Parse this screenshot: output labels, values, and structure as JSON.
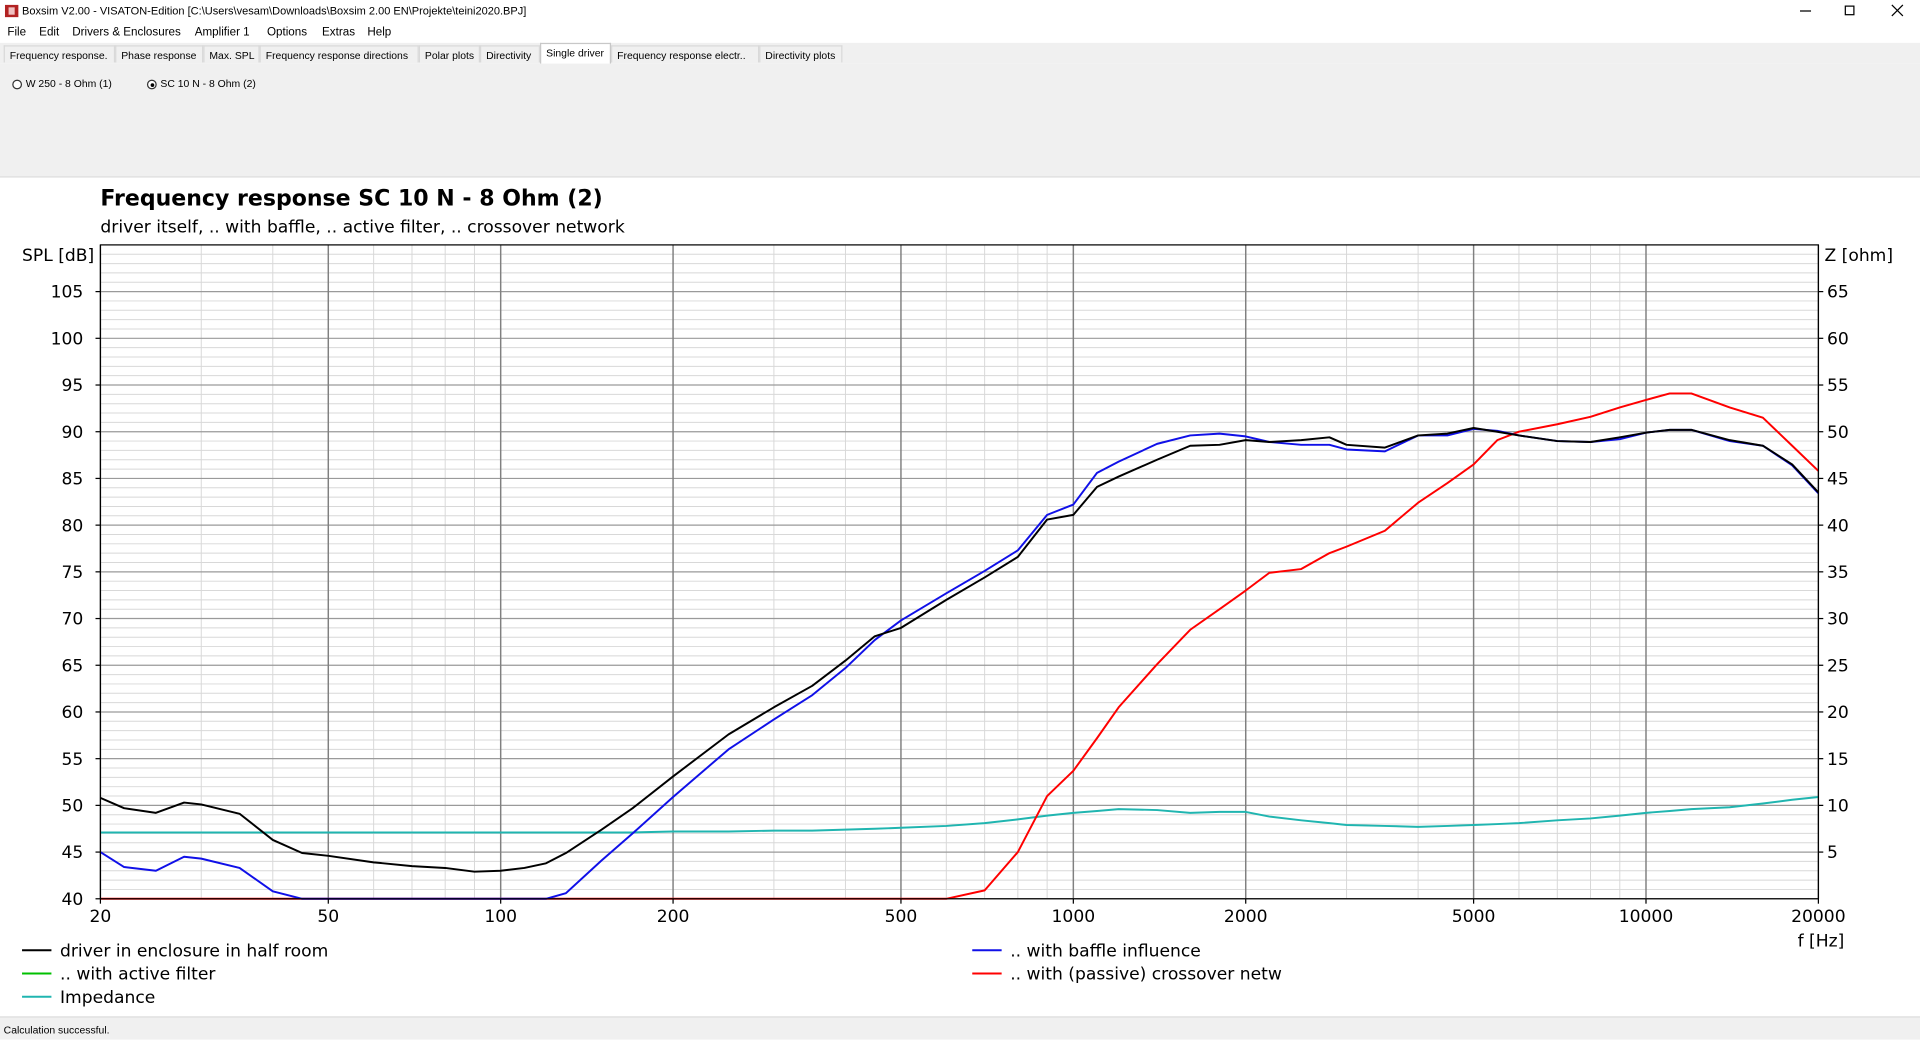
{
  "window": {
    "title": "Boxsim V2.00 - VISATON-Edition [C:\\Users\\vesam\\Downloads\\Boxsim 2.00 EN\\Projekte\\teini2020.BPJ]"
  },
  "menu": [
    "File",
    "Edit",
    "Drivers & Enclosures",
    "Amplifier 1",
    "Options",
    "Extras",
    "Help"
  ],
  "tabs": [
    "Frequency response.",
    "Phase response",
    "Max. SPL",
    "Frequency response directions",
    "Polar plots",
    "Directivity",
    "Single driver",
    "Frequency response electr..",
    "Directivity plots"
  ],
  "active_tab": 6,
  "drivers": [
    "W 250 - 8 Ohm (1)",
    "SC 10 N - 8 Ohm (2)"
  ],
  "selected_driver": 1,
  "status": "Calculation successful.",
  "chart_data": {
    "type": "line",
    "title": "Frequency response SC 10 N - 8 Ohm (2)",
    "subtitle": "driver itself, .. with baffle, .. active filter, .. crossover network",
    "ylabel": "SPL [dB]",
    "y2label": "Z [ohm]",
    "xlabel": "f [Hz]",
    "xscale": "log",
    "grid": true,
    "xlim": [
      20,
      20000
    ],
    "xticks": [
      20,
      50,
      100,
      200,
      500,
      1000,
      2000,
      5000,
      10000,
      20000
    ],
    "xminorticks": [
      30,
      40,
      60,
      70,
      80,
      90,
      300,
      400,
      600,
      700,
      800,
      900,
      3000,
      4000,
      6000,
      7000,
      8000,
      9000
    ],
    "ylim": [
      40,
      110
    ],
    "yticks": [
      40,
      45,
      50,
      55,
      60,
      65,
      70,
      75,
      80,
      85,
      90,
      95,
      100,
      105
    ],
    "yminorticks": [
      41,
      42,
      43,
      44,
      46,
      47,
      48,
      49,
      51,
      52,
      53,
      54,
      56,
      57,
      58,
      59,
      61,
      62,
      63,
      64,
      66,
      67,
      68,
      69,
      71,
      72,
      73,
      74,
      76,
      77,
      78,
      79,
      81,
      82,
      83,
      84,
      86,
      87,
      88,
      89,
      91,
      92,
      93,
      94,
      96,
      97,
      98,
      99,
      101,
      102,
      103,
      104,
      106,
      107,
      108,
      109
    ],
    "y2lim": [
      0,
      70
    ],
    "y2ticks": [
      5,
      10,
      15,
      20,
      25,
      30,
      35,
      40,
      45,
      50,
      55,
      60,
      65
    ],
    "x": [
      20,
      22,
      25,
      28,
      30,
      35,
      40,
      45,
      50,
      60,
      70,
      80,
      90,
      100,
      110,
      120,
      130,
      150,
      170,
      200,
      250,
      300,
      350,
      400,
      450,
      500,
      600,
      700,
      800,
      900,
      1000,
      1100,
      1200,
      1400,
      1600,
      1800,
      2000,
      2200,
      2500,
      2800,
      3000,
      3500,
      4000,
      4500,
      5000,
      5500,
      6000,
      7000,
      8000,
      9000,
      10000,
      11000,
      12000,
      14000,
      16000,
      18000,
      20000
    ],
    "series": [
      {
        "name": "driver in enclosure in half room",
        "color": "#000000",
        "values": [
          50.8,
          49.7,
          49.2,
          50.3,
          50.1,
          49.1,
          46.3,
          44.9,
          44.6,
          43.9,
          43.5,
          43.3,
          42.9,
          43.0,
          43.3,
          43.8,
          44.9,
          47.4,
          49.7,
          53.1,
          57.6,
          60.5,
          62.8,
          65.5,
          68.1,
          69.0,
          72.0,
          74.4,
          76.6,
          80.6,
          81.1,
          84.1,
          85.2,
          87.0,
          88.5,
          88.6,
          89.1,
          88.9,
          89.1,
          89.4,
          88.6,
          88.3,
          89.6,
          89.8,
          90.4,
          90.0,
          89.6,
          89.0,
          88.9,
          89.4,
          89.9,
          90.2,
          90.2,
          89.1,
          88.5,
          86.5,
          83.5
        ]
      },
      {
        "name": ".. with baffle influence",
        "color": "#1010e8",
        "values": [
          45.0,
          43.4,
          43.0,
          44.5,
          44.3,
          43.3,
          40.8,
          40,
          40,
          40,
          40,
          40,
          40,
          40,
          40,
          40,
          40.6,
          44.1,
          47.0,
          50.9,
          56.0,
          59.2,
          61.8,
          64.7,
          67.7,
          69.8,
          72.7,
          75.1,
          77.3,
          81.1,
          82.2,
          85.6,
          86.8,
          88.7,
          89.6,
          89.8,
          89.5,
          88.9,
          88.6,
          88.6,
          88.1,
          87.9,
          89.6,
          89.6,
          90.3,
          90.1,
          89.6,
          89.0,
          88.9,
          89.2,
          89.9,
          90.2,
          90.2,
          89.0,
          88.5,
          86.4,
          83.4
        ]
      },
      {
        "name": ".. with active filter",
        "color": "#00c000",
        "values": [
          null,
          null,
          null,
          null,
          null,
          null,
          null,
          null,
          null,
          null,
          null,
          null,
          null,
          null,
          null,
          null,
          null,
          null,
          null,
          null,
          null,
          null,
          null,
          null,
          null,
          null,
          null,
          null,
          null,
          null,
          null,
          null,
          null,
          null,
          null,
          null,
          null,
          null,
          null,
          null,
          null,
          null,
          null,
          null,
          null,
          null,
          null,
          null,
          null,
          null,
          null,
          null,
          null,
          null,
          null,
          null,
          null
        ]
      },
      {
        "name": ".. with (passive) crossover netw",
        "color": "#ff0000",
        "values": [
          40,
          40,
          40,
          40,
          40,
          40,
          40,
          40,
          40,
          40,
          40,
          40,
          40,
          40,
          40,
          40,
          40,
          40,
          40,
          40,
          40,
          40,
          40,
          40,
          40,
          40,
          40,
          40.9,
          45.0,
          51.0,
          53.7,
          57.2,
          60.5,
          65.1,
          68.8,
          71.0,
          73.0,
          74.9,
          75.3,
          77.0,
          77.7,
          79.4,
          82.4,
          84.5,
          86.5,
          89.1,
          90.0,
          90.8,
          91.6,
          92.6,
          93.4,
          94.1,
          94.1,
          92.6,
          91.5,
          88.5,
          85.8
        ]
      },
      {
        "name": "Impedance",
        "color": "#20b5b0",
        "axis": "y2",
        "values": [
          7.1,
          7.1,
          7.1,
          7.1,
          7.1,
          7.1,
          7.1,
          7.1,
          7.1,
          7.1,
          7.1,
          7.1,
          7.1,
          7.1,
          7.1,
          7.1,
          7.1,
          7.1,
          7.1,
          7.2,
          7.2,
          7.3,
          7.3,
          7.4,
          7.5,
          7.6,
          7.8,
          8.1,
          8.5,
          8.9,
          9.2,
          9.4,
          9.6,
          9.5,
          9.2,
          9.3,
          9.3,
          8.8,
          8.4,
          8.1,
          7.9,
          7.8,
          7.7,
          7.8,
          7.9,
          8.0,
          8.1,
          8.4,
          8.6,
          8.9,
          9.2,
          9.4,
          9.6,
          9.8,
          10.2,
          10.6,
          10.9
        ]
      }
    ]
  }
}
